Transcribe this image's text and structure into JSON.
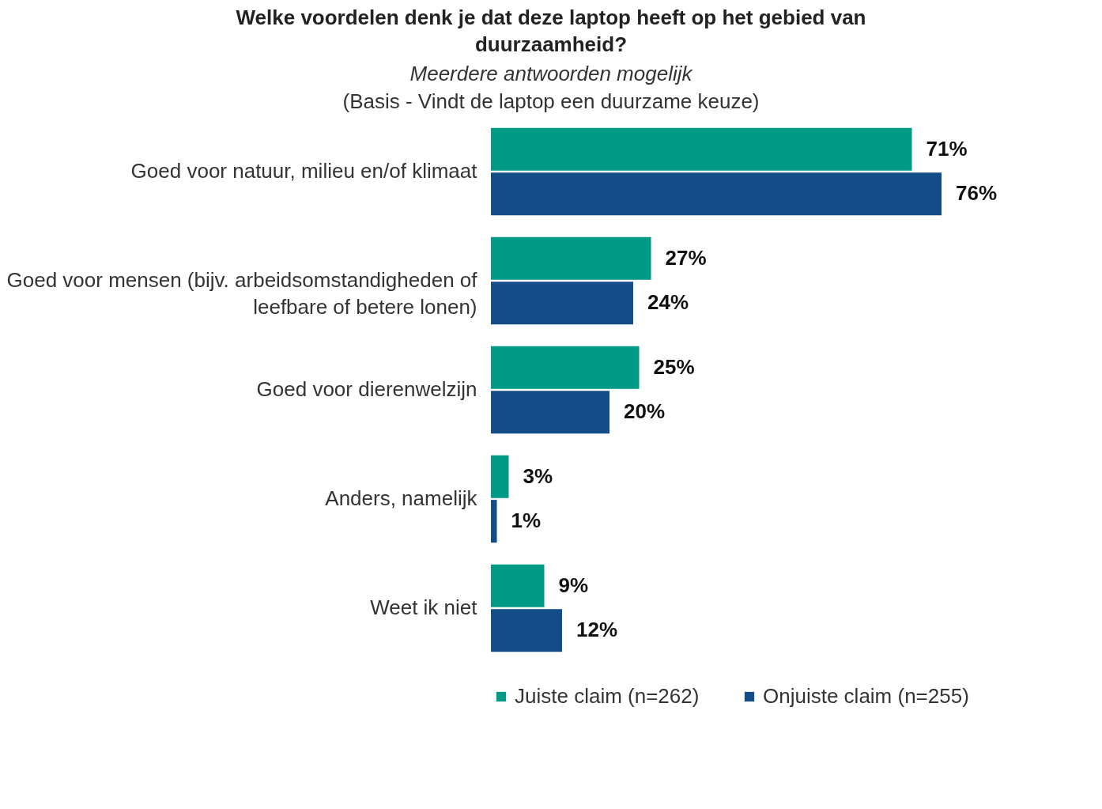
{
  "chart_data": {
    "type": "bar",
    "orientation": "horizontal",
    "title": "Welke voordelen denk je dat deze laptop heeft op het gebied van duurzaamheid?",
    "subtitle": "Meerdere antwoorden mogelijk",
    "annotations": [
      "(Basis - Vindt de laptop een duurzame keuze)"
    ],
    "categories": [
      "Goed voor natuur, milieu en/of klimaat",
      "Goed voor mensen (bijv. arbeidsomstandigheden of leefbare of betere lonen)",
      "Goed voor dierenwelzijn",
      "Anders, namelijk",
      "Weet ik niet"
    ],
    "series": [
      {
        "name": "Juiste claim (n=262)",
        "color": "#009a87",
        "values": [
          71,
          27,
          25,
          3,
          9
        ],
        "value_labels": [
          "71%",
          "27%",
          "25%",
          "3%",
          "9%"
        ]
      },
      {
        "name": "Onjuiste claim  (n=255)",
        "color": "#134c89",
        "values": [
          76,
          24,
          20,
          1,
          12
        ],
        "value_labels": [
          "76%",
          "24%",
          "20%",
          "1%",
          "12%"
        ]
      }
    ],
    "legend": "bottom"
  }
}
